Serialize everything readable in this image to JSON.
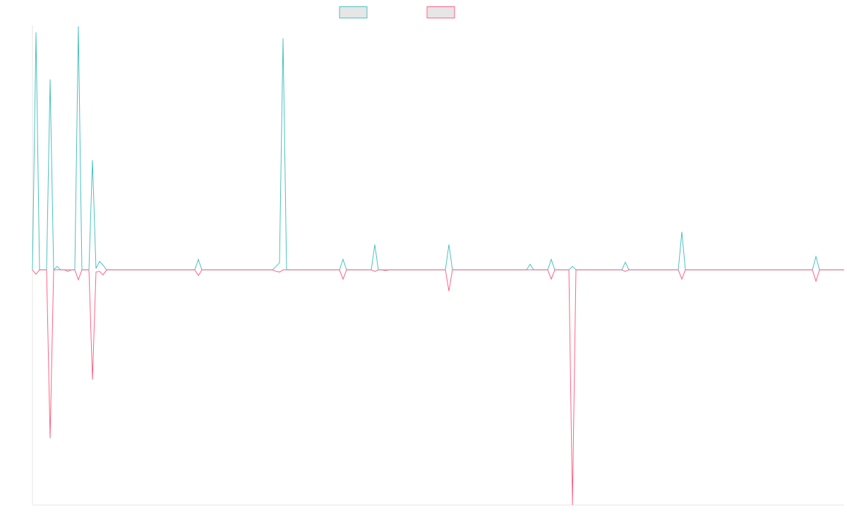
{
  "chart_data": {
    "type": "line",
    "categories": [
      null,
      null,
      null,
      null,
      null,
      null,
      null,
      null,
      null,
      null,
      null,
      null,
      null,
      null,
      null,
      null,
      null,
      null,
      null,
      null,
      null,
      null,
      null,
      null,
      null,
      null,
      null,
      null,
      null,
      null,
      null,
      null,
      null,
      null,
      null,
      null,
      null,
      null,
      null,
      null,
      null,
      null,
      null,
      null,
      null,
      null,
      null,
      null,
      null,
      null,
      null,
      null,
      null,
      null,
      null,
      null,
      null,
      null,
      null,
      null,
      null,
      null,
      null,
      null,
      null,
      null,
      null,
      null,
      null,
      null,
      null,
      null,
      null,
      null,
      null,
      null,
      null,
      null,
      null,
      null,
      null,
      null,
      null,
      null,
      null,
      null,
      null,
      null,
      null,
      null,
      null,
      null,
      null,
      null,
      null,
      null,
      null,
      null,
      null,
      null,
      null,
      null,
      null,
      null,
      null,
      null,
      null,
      null,
      null,
      null,
      null,
      null,
      null,
      null,
      null,
      null,
      null,
      null,
      null,
      null,
      null,
      null,
      null,
      null,
      null,
      null,
      null,
      null,
      null,
      null,
      null,
      null,
      null,
      null,
      null,
      null,
      null,
      null,
      null,
      null,
      null,
      null,
      null,
      null,
      null,
      null,
      null,
      null,
      null,
      null,
      null,
      null,
      null,
      null,
      null,
      null,
      null,
      null,
      null,
      null,
      null,
      null,
      null,
      null,
      null,
      null,
      null,
      null,
      null,
      null,
      null,
      null,
      null,
      null,
      null,
      null,
      null,
      null,
      null,
      null,
      null,
      null,
      null,
      null,
      null,
      null,
      null,
      null,
      null,
      null,
      null,
      null,
      null,
      null,
      null,
      null,
      null,
      null,
      null,
      null,
      null,
      null,
      null,
      null,
      null,
      null,
      null,
      null,
      null,
      null,
      null,
      null,
      null,
      null,
      null,
      null,
      null,
      null,
      null,
      null,
      null,
      null,
      null,
      null,
      null,
      null,
      null,
      null,
      null,
      null,
      null
    ],
    "series": [
      {
        "color": "#4bc0c0",
        "values": [
          0,
          101,
          0,
          0,
          0,
          81,
          0,
          1.5,
          0,
          0,
          0,
          0,
          0,
          103.6,
          0,
          0,
          0,
          46.7,
          0.6,
          3.6,
          2,
          0,
          0,
          0,
          0,
          0,
          0,
          0,
          0,
          0,
          0,
          0,
          0,
          0,
          0,
          0,
          0,
          0,
          0,
          0,
          0,
          0,
          0,
          0,
          0,
          0,
          0,
          4.5,
          0,
          0,
          0,
          0,
          0,
          0,
          0,
          0,
          0,
          0,
          0,
          0,
          0,
          0,
          0,
          0,
          0,
          0,
          0,
          0,
          0,
          1.5,
          3,
          98.5,
          0,
          0,
          0,
          0,
          0,
          0,
          0,
          0,
          0,
          0,
          0,
          0,
          0,
          0,
          0,
          0,
          4.5,
          0,
          0,
          0,
          0,
          0,
          0,
          0,
          0,
          10.8,
          0,
          0,
          0,
          0,
          0,
          0,
          0,
          0,
          0,
          0,
          0,
          0,
          0,
          0,
          0,
          0,
          0,
          0,
          0,
          0,
          10.8,
          0,
          0,
          0,
          0,
          0,
          0,
          0,
          0,
          0,
          0,
          0,
          0,
          0,
          0,
          0,
          0,
          0,
          0,
          0,
          0,
          0,
          0,
          2.4,
          0,
          0,
          0,
          0,
          0,
          4.5,
          0,
          0,
          0,
          0,
          0,
          1.5,
          0,
          0,
          0,
          0,
          0,
          0,
          0,
          0,
          0,
          0,
          0,
          0,
          0,
          0,
          3.3,
          0,
          0,
          0,
          0,
          0,
          0,
          0,
          0,
          0,
          0,
          0,
          0,
          0,
          0,
          0,
          16.2,
          0,
          0,
          0,
          0,
          0,
          0,
          0,
          0,
          0,
          0,
          0,
          0,
          0,
          0,
          0,
          0,
          0,
          0,
          0,
          0,
          0,
          0,
          0,
          0,
          0,
          0,
          0,
          0,
          0,
          0,
          0,
          0,
          0,
          0,
          0,
          0,
          0,
          5.7,
          0,
          0,
          0,
          0,
          0,
          0,
          0,
          0
        ]
      },
      {
        "color": "#ff6384",
        "values": [
          0,
          -1.8,
          0,
          0,
          0,
          -71.6,
          0,
          0,
          0,
          0,
          -0.6,
          0,
          0,
          -4.2,
          0,
          0,
          0,
          -46.7,
          -0.9,
          -0.6,
          -2.1,
          0,
          0,
          0,
          0,
          0,
          0,
          0,
          0,
          0,
          0,
          0,
          0,
          0,
          0,
          0,
          0,
          0,
          0,
          0,
          0,
          0,
          0,
          0,
          0,
          0,
          0,
          -2.4,
          0,
          0,
          0,
          0,
          0,
          0,
          0,
          0,
          0,
          0,
          0,
          0,
          0,
          0,
          0,
          0,
          0,
          0,
          0,
          0,
          0,
          -0.6,
          -0.9,
          0,
          0,
          0,
          0,
          0,
          0,
          0,
          0,
          0,
          0,
          0,
          0,
          0,
          0,
          0,
          0,
          0,
          -3.9,
          0,
          0,
          0,
          0,
          0,
          0,
          0,
          0,
          -0.6,
          0,
          0,
          -0.3,
          0,
          0,
          0,
          0,
          0,
          0,
          0,
          0,
          0,
          0,
          0,
          0,
          0,
          0,
          0,
          0,
          0,
          -9,
          0,
          0,
          0,
          0,
          0,
          0,
          0,
          0,
          0,
          0,
          0,
          0,
          0,
          0,
          0,
          0,
          0,
          0,
          0,
          0,
          0,
          0,
          0,
          0,
          0,
          0,
          0,
          0,
          -3.9,
          0,
          0,
          0,
          0,
          0,
          -100,
          0,
          0,
          0,
          0,
          0,
          0,
          0,
          0,
          0,
          0,
          0,
          0,
          0,
          0,
          -0.6,
          0,
          0,
          0,
          0,
          0,
          0,
          0,
          0,
          0,
          0,
          0,
          0,
          0,
          0,
          0,
          -3.9,
          0,
          0,
          0,
          0,
          0,
          0,
          0,
          0,
          0,
          0,
          0,
          0,
          0,
          0,
          0,
          0,
          0,
          0,
          0,
          0,
          0,
          0,
          0,
          0,
          0,
          0,
          0,
          0,
          0,
          0,
          0,
          0,
          0,
          0,
          0,
          0,
          0,
          -4.8,
          0,
          0,
          0,
          0,
          0,
          0,
          0,
          0
        ]
      }
    ],
    "ylim": [
      -100,
      104
    ]
  }
}
